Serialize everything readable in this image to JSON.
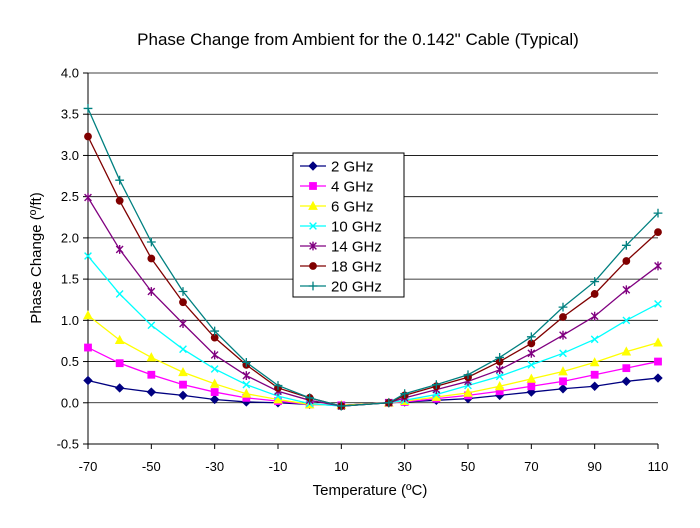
{
  "chart_data": {
    "type": "line",
    "title": "Phase Change from Ambient for the 0.142\" Cable (Typical)",
    "xlabel": "Temperature (ºC)",
    "ylabel": "Phase Change (º/ft)",
    "xlim": [
      -70,
      110
    ],
    "ylim": [
      -0.5,
      4.0
    ],
    "x_ticks": [
      "-70",
      "-50",
      "-30",
      "-10",
      "10",
      "30",
      "50",
      "70",
      "90",
      "110"
    ],
    "y_ticks": [
      "-0.5",
      "0.0",
      "0.5",
      "1.0",
      "1.5",
      "2.0",
      "2.5",
      "3.0",
      "3.5",
      "4.0"
    ],
    "grid": "horizontal",
    "legend_position": "center",
    "x": [
      -70,
      -60,
      -50,
      -40,
      -30,
      -20,
      -10,
      0,
      10,
      25,
      30,
      40,
      50,
      60,
      70,
      80,
      90,
      100,
      110
    ],
    "series": [
      {
        "name": "2 GHz",
        "color": "#000080",
        "marker": "diamond",
        "values": [
          0.27,
          0.18,
          0.13,
          0.09,
          0.04,
          0.01,
          0.0,
          -0.02,
          -0.03,
          0.0,
          0.01,
          0.03,
          0.05,
          0.09,
          0.13,
          0.17,
          0.2,
          0.26,
          0.3
        ]
      },
      {
        "name": "4 GHz",
        "color": "#FF00FF",
        "marker": "square",
        "values": [
          0.67,
          0.48,
          0.34,
          0.22,
          0.13,
          0.06,
          0.02,
          -0.02,
          -0.03,
          0.0,
          0.01,
          0.05,
          0.09,
          0.14,
          0.2,
          0.26,
          0.34,
          0.42,
          0.5
        ]
      },
      {
        "name": "6 GHz",
        "color": "#FFFF00",
        "marker": "triangle",
        "values": [
          1.06,
          0.76,
          0.55,
          0.37,
          0.23,
          0.11,
          0.04,
          -0.02,
          -0.03,
          0.0,
          0.02,
          0.07,
          0.12,
          0.2,
          0.29,
          0.38,
          0.49,
          0.62,
          0.73
        ]
      },
      {
        "name": "10 GHz",
        "color": "#00FFFF",
        "marker": "x",
        "values": [
          1.78,
          1.32,
          0.94,
          0.65,
          0.41,
          0.22,
          0.08,
          -0.01,
          -0.04,
          0.0,
          0.03,
          0.1,
          0.21,
          0.32,
          0.46,
          0.6,
          0.77,
          1.0,
          1.2
        ]
      },
      {
        "name": "14 GHz",
        "color": "#800080",
        "marker": "star",
        "values": [
          2.49,
          1.86,
          1.35,
          0.96,
          0.58,
          0.33,
          0.14,
          0.03,
          -0.04,
          0.0,
          0.06,
          0.16,
          0.26,
          0.4,
          0.6,
          0.82,
          1.05,
          1.37,
          1.66
        ]
      },
      {
        "name": "18 GHz",
        "color": "#800000",
        "marker": "circle",
        "values": [
          3.23,
          2.45,
          1.75,
          1.22,
          0.79,
          0.46,
          0.18,
          0.06,
          -0.04,
          0.0,
          0.09,
          0.2,
          0.31,
          0.5,
          0.72,
          1.04,
          1.32,
          1.72,
          2.07
        ]
      },
      {
        "name": "20 GHz",
        "color": "#008080",
        "marker": "plus",
        "values": [
          3.57,
          2.7,
          1.95,
          1.35,
          0.87,
          0.49,
          0.21,
          0.06,
          -0.04,
          0.0,
          0.11,
          0.22,
          0.34,
          0.55,
          0.8,
          1.16,
          1.47,
          1.91,
          2.3
        ]
      }
    ]
  }
}
